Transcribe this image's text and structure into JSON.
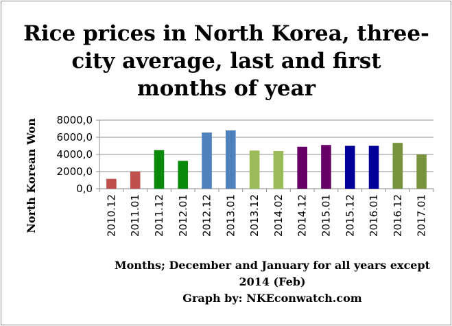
{
  "chart_data": {
    "type": "bar",
    "title_lines": [
      "Rice prices in North Korea, three-",
      "city average, last and first",
      "months of year"
    ],
    "ylabel": "North Korean Won",
    "xlabel_lines": [
      "Months; December and January for all years except",
      "2014 (Feb)"
    ],
    "credit": "Graph by: NKEconwatch.com",
    "ylim": [
      0,
      8000
    ],
    "yticks": [
      {
        "value": 0,
        "label": "0,0"
      },
      {
        "value": 2000,
        "label": "2000,0"
      },
      {
        "value": 4000,
        "label": "4000,0"
      },
      {
        "value": 6000,
        "label": "6000,0"
      },
      {
        "value": 8000,
        "label": "8000,0"
      }
    ],
    "grid": true,
    "categories": [
      "2010.12",
      "2011.01",
      "2011.12",
      "2012.01",
      "2012.12",
      "2013.01",
      "2013.12",
      "2014.02",
      "2014.12",
      "2015.01",
      "2015.12",
      "2016.01",
      "2016.12",
      "2017.01"
    ],
    "values": [
      1150,
      2000,
      4500,
      3250,
      6550,
      6800,
      4450,
      4400,
      4900,
      5100,
      5000,
      5000,
      5350,
      4000
    ],
    "colors": [
      "#c0504d",
      "#c0504d",
      "#0a8a0a",
      "#0a8a0a",
      "#4f81bd",
      "#4f81bd",
      "#9bbb59",
      "#9bbb59",
      "#660066",
      "#660066",
      "#000099",
      "#000099",
      "#77933c",
      "#77933c"
    ]
  }
}
